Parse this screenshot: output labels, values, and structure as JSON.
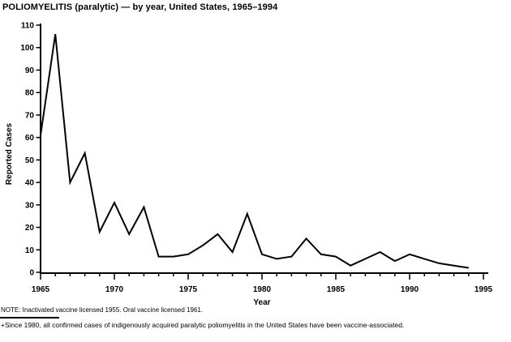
{
  "title": "POLIOMYELITIS (paralytic) — by year, United States, 1965–1994",
  "chart_data": {
    "type": "line",
    "title": "POLIOMYELITIS (paralytic) — by year, United States, 1965–1994",
    "xlabel": "Year",
    "ylabel": "Reported Cases",
    "xlim": [
      1965,
      1995
    ],
    "ylim": [
      0,
      110
    ],
    "x_major_ticks": [
      1965,
      1970,
      1975,
      1980,
      1985,
      1990,
      1995
    ],
    "y_ticks": [
      0,
      10,
      20,
      30,
      40,
      50,
      60,
      70,
      80,
      90,
      100,
      110
    ],
    "grid": false,
    "legend": false,
    "line_color": "#000000",
    "x": [
      1965,
      1966,
      1967,
      1968,
      1969,
      1970,
      1971,
      1972,
      1973,
      1974,
      1975,
      1976,
      1977,
      1978,
      1979,
      1980,
      1981,
      1982,
      1983,
      1984,
      1985,
      1986,
      1987,
      1988,
      1989,
      1990,
      1991,
      1992,
      1993,
      1994
    ],
    "values": [
      61,
      106,
      40,
      53,
      18,
      31,
      17,
      29,
      7,
      7,
      8,
      12,
      17,
      9,
      26,
      8,
      6,
      7,
      15,
      8,
      7,
      3,
      6,
      9,
      5,
      8,
      6,
      4,
      3,
      2
    ]
  },
  "notes": {
    "note": "NOTE: Inactivated vaccine licensed 1955. Oral vaccine licensed 1961.",
    "footnote": "+Since 1980, all confirmed cases of indigenously acquired paralytic poliomyelitis in the United States have been vaccine-associated."
  },
  "colors": {
    "ink": "#000000",
    "background": "#ffffff"
  }
}
